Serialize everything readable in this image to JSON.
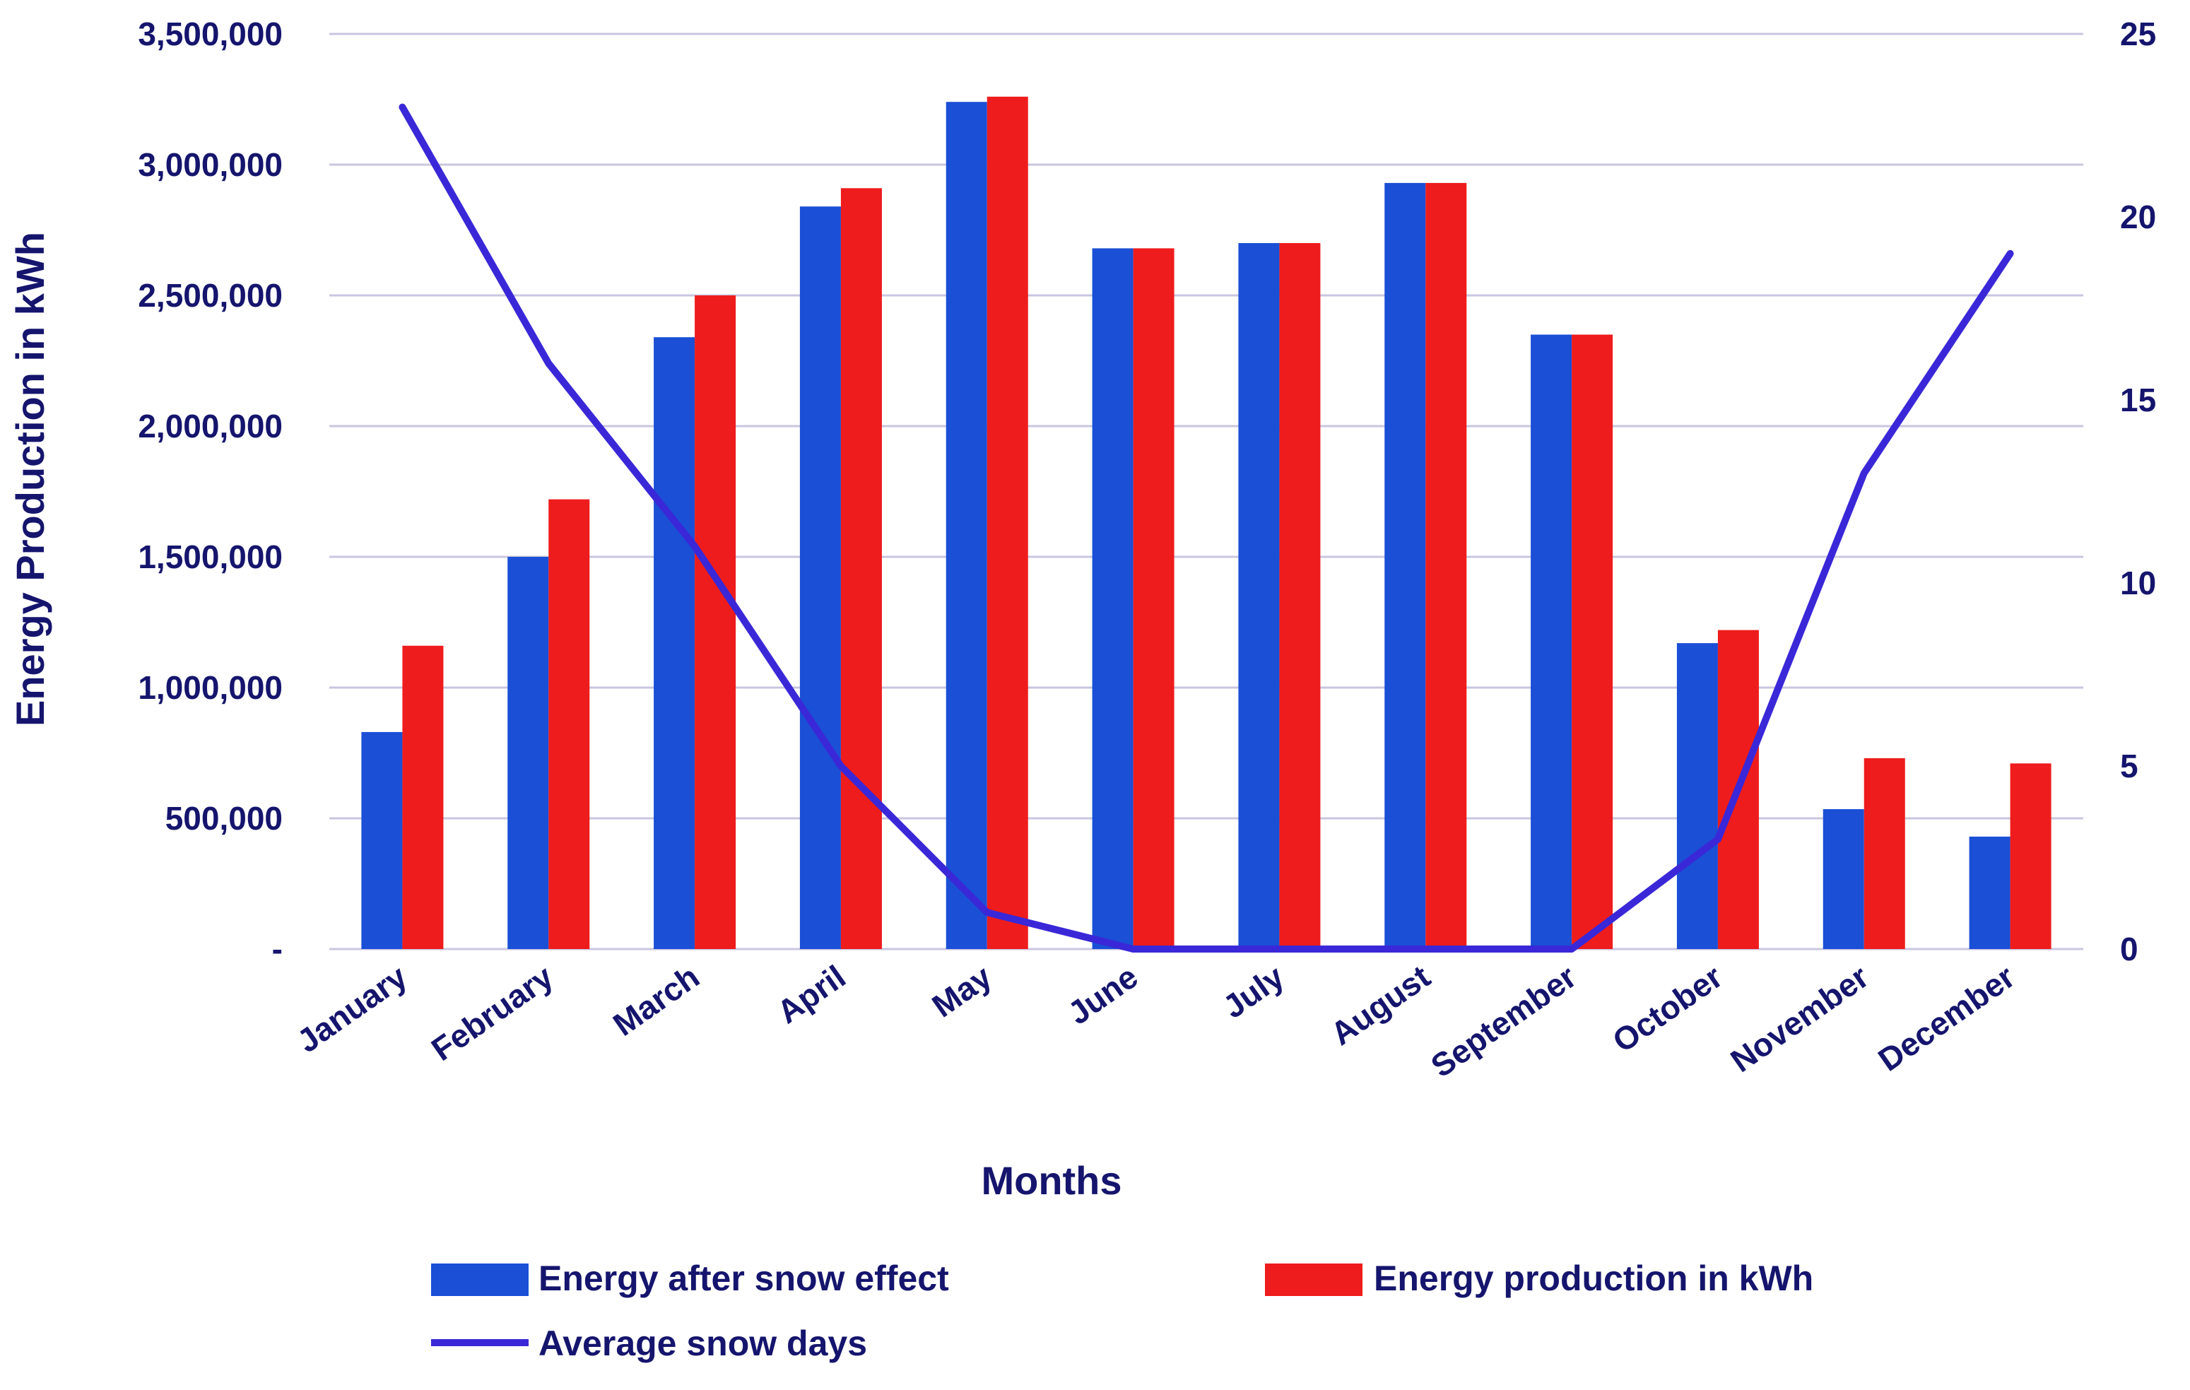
{
  "chart_data": {
    "type": "bar",
    "title": "",
    "xlabel": "Months",
    "ylabel": "Energy Production in kWh",
    "y2label": "",
    "categories": [
      "January",
      "February",
      "March",
      "April",
      "May",
      "June",
      "July",
      "August",
      "September",
      "October",
      "November",
      "December"
    ],
    "series": [
      {
        "name": "Energy after snow effect",
        "kind": "bar",
        "axis": "left",
        "color": "#1a4fd6",
        "values": [
          830000,
          1500000,
          2340000,
          2840000,
          3240000,
          2680000,
          2700000,
          2930000,
          2350000,
          1170000,
          535000,
          430000
        ]
      },
      {
        "name": "Energy production in kWh",
        "kind": "bar",
        "axis": "left",
        "color": "#ee1c1c",
        "values": [
          1160000,
          1720000,
          2500000,
          2910000,
          3260000,
          2680000,
          2700000,
          2930000,
          2350000,
          1220000,
          730000,
          710000
        ]
      },
      {
        "name": "Average snow days",
        "kind": "line",
        "axis": "right",
        "color": "#3a28d8",
        "values": [
          23,
          16,
          11,
          5,
          1,
          0,
          0,
          0,
          0,
          3,
          13,
          19
        ]
      }
    ],
    "ylim": [
      0,
      3500000
    ],
    "y2lim": [
      0,
      25
    ],
    "y_ticks": [
      0,
      500000,
      1000000,
      1500000,
      2000000,
      2500000,
      3000000,
      3500000
    ],
    "y_tick_labels": [
      "-",
      "500,000",
      "1,000,000",
      "1,500,000",
      "2,000,000",
      "2,500,000",
      "3,000,000",
      "3,500,000"
    ],
    "y2_ticks": [
      0,
      5,
      10,
      15,
      20,
      25
    ],
    "y2_tick_labels": [
      "0",
      "5",
      "10",
      "15",
      "20",
      "25"
    ],
    "grid": true,
    "legend_position": "bottom"
  },
  "colors": {
    "grid": "#c9c6e0",
    "axis_text": "#15156e"
  }
}
